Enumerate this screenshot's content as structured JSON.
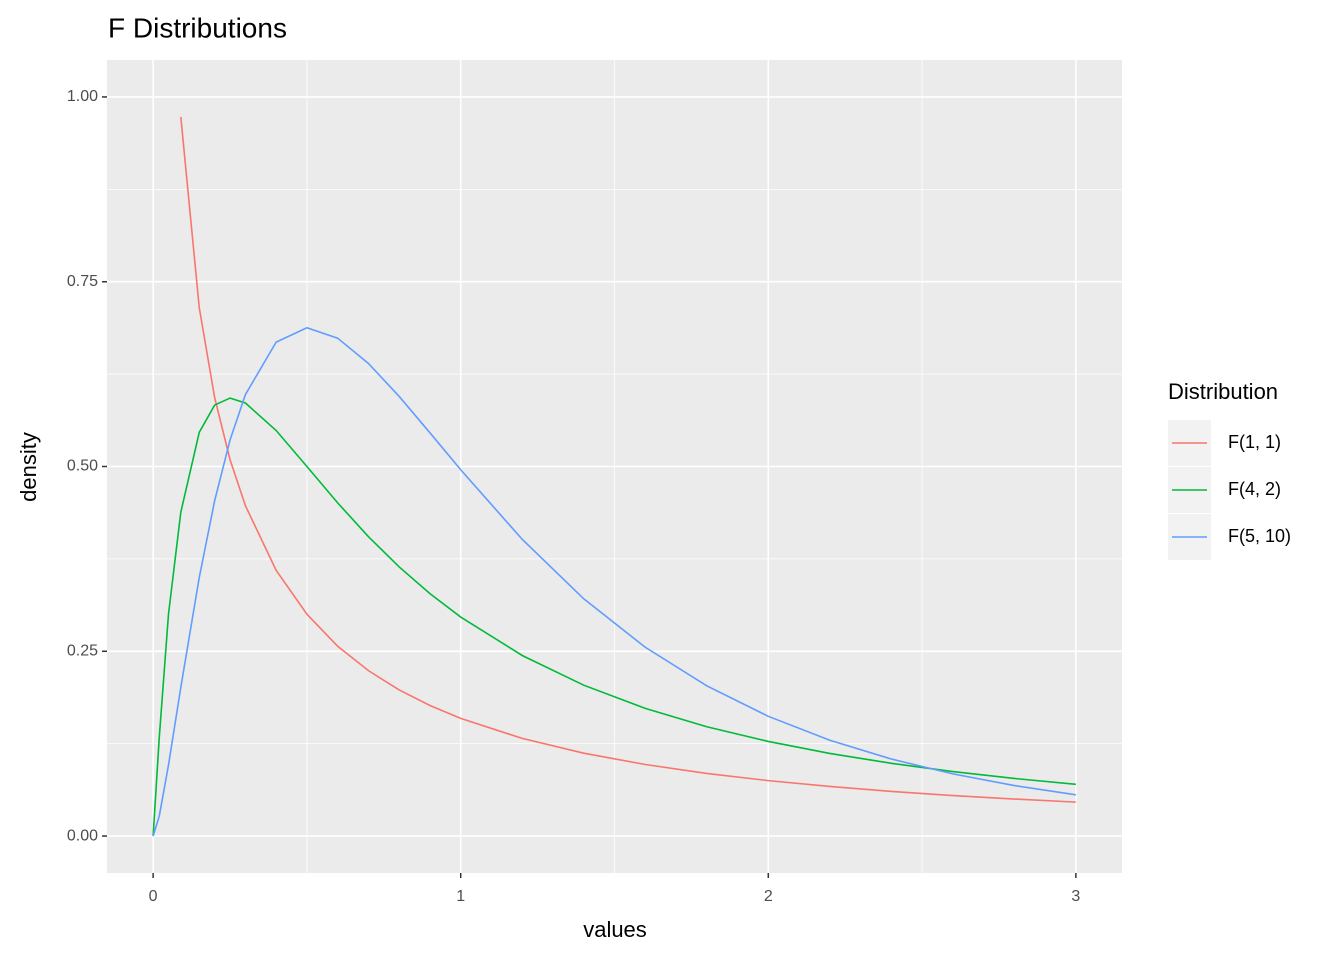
{
  "chart_data": {
    "type": "line",
    "title": "F Distributions",
    "x_label": "values",
    "y_label": "density",
    "legend_title": "Distribution",
    "x": [
      0,
      0.02,
      0.05,
      0.09,
      0.15,
      0.2,
      0.25,
      0.3,
      0.4,
      0.5,
      0.6,
      0.7,
      0.8,
      0.9,
      1,
      1.2,
      1.4,
      1.6,
      1.8,
      2,
      2.2,
      2.4,
      2.6,
      2.8,
      3
    ],
    "series": [
      {
        "name": "F(1, 1)",
        "color": "#F8766D",
        "values": [
          null,
          null,
          null,
          0.973,
          0.7147,
          0.5932,
          0.5093,
          0.447,
          0.3595,
          0.3001,
          0.2568,
          0.2238,
          0.1977,
          0.1766,
          0.1592,
          0.1321,
          0.1121,
          0.0968,
          0.0847,
          0.075,
          0.0671,
          0.0604,
          0.0548,
          0.0501,
          0.0459
        ]
      },
      {
        "name": "F(4, 2)",
        "color": "#00BA38",
        "values": [
          0,
          0.1339,
          0.3005,
          0.4382,
          0.5462,
          0.5831,
          0.5926,
          0.5859,
          0.5487,
          0.5,
          0.4508,
          0.4051,
          0.3641,
          0.328,
          0.2963,
          0.2443,
          0.2041,
          0.1728,
          0.1479,
          0.128,
          0.1118,
          0.0984,
          0.0873,
          0.0779,
          0.07
        ]
      },
      {
        "name": "F(5, 10)",
        "color": "#619CFF",
        "values": [
          0,
          0.0272,
          0.0963,
          0.2013,
          0.35,
          0.4537,
          0.5358,
          0.5973,
          0.6683,
          0.6877,
          0.6736,
          0.6394,
          0.5948,
          0.5456,
          0.4956,
          0.4014,
          0.321,
          0.2554,
          0.2032,
          0.162,
          0.1296,
          0.1042,
          0.0841,
          0.0683,
          0.0558
        ]
      }
    ],
    "xlim": [
      -0.15,
      3.15
    ],
    "xticks": [
      0,
      1,
      2,
      3
    ],
    "ylim": [
      -0.05,
      1.05
    ],
    "yticks": [
      {
        "value": 0,
        "label": "0.00"
      },
      {
        "value": 0.25,
        "label": "0.25"
      },
      {
        "value": 0.5,
        "label": "0.50"
      },
      {
        "value": 0.75,
        "label": "0.75"
      },
      {
        "value": 1,
        "label": "1.00"
      }
    ],
    "grid": true,
    "legend_position": "right"
  }
}
